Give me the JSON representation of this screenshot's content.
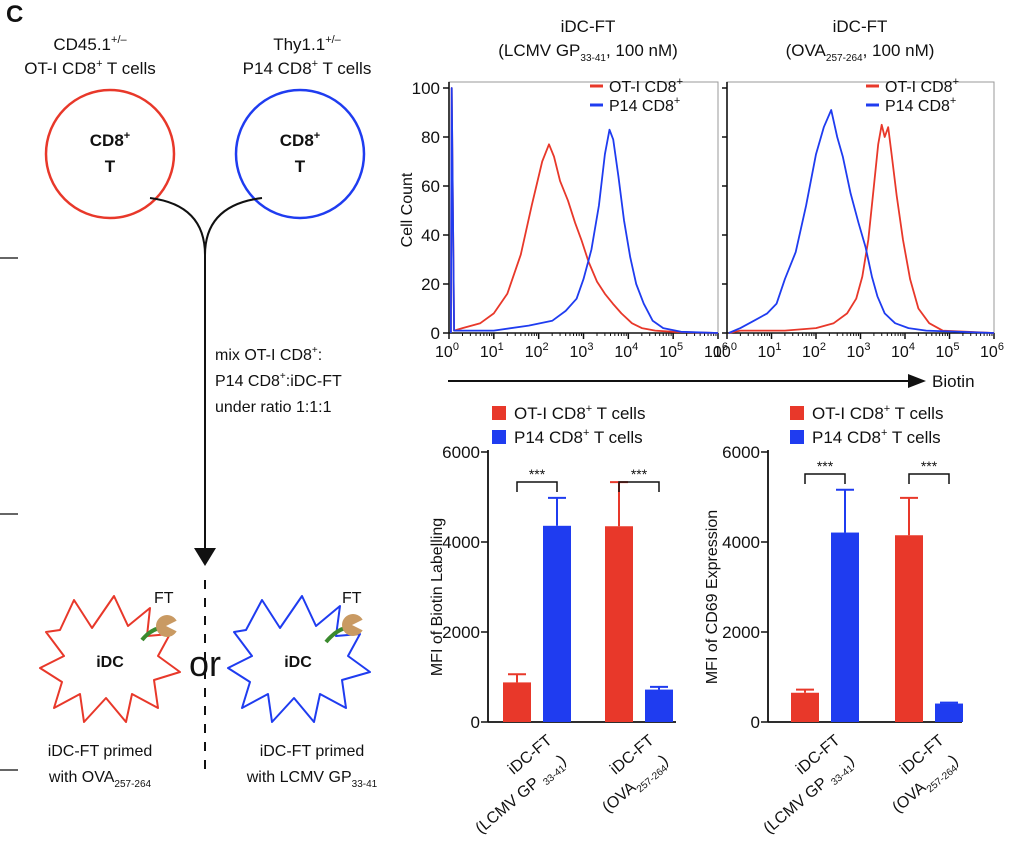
{
  "panel_label": "C",
  "colors": {
    "ot1": "#e8382a",
    "p14": "#1f3cf0",
    "axis": "#111111",
    "ft": "#c99a63",
    "ft_link": "#3b8a2e"
  },
  "schematic": {
    "ot1_header": [
      "CD45.1+/–",
      "OT-I CD8+ T cells"
    ],
    "p14_header": [
      "Thy1.1+/–",
      "P14 CD8+ T cells"
    ],
    "cell_label": [
      "CD8+",
      "T"
    ],
    "mix_text": [
      "mix OT-I CD8+:",
      "P14 CD8+:iDC-FT",
      "under ratio 1:1:1"
    ],
    "idc_label": "iDC",
    "ft_label": "FT",
    "or_label": "or",
    "caption_left": [
      "iDC-FT primed",
      "with OVA257-264"
    ],
    "caption_right": [
      "iDC-FT primed",
      "with LCMV GP33-41"
    ]
  },
  "chart_data": [
    {
      "type": "line",
      "title": "iDC-FT (LCMV GP33-41, 100 nM)",
      "ylabel": "Cell Count",
      "xlabel": "Biotin",
      "x_scale": "log",
      "xlim": [
        1,
        1000000
      ],
      "ylim": [
        0,
        100
      ],
      "y_ticks": [
        "0",
        "20",
        "40",
        "60",
        "80",
        "100"
      ],
      "x_ticks": [
        "10^0",
        "10^1",
        "10^2",
        "10^3",
        "10^4",
        "10^5",
        "10^6"
      ],
      "legend": "top-right",
      "series": [
        {
          "name": "OT-I CD8+",
          "color": "#e8382a",
          "points": [
            [
              1.1,
              0
            ],
            [
              1.15,
              100
            ],
            [
              1.3,
              1
            ],
            [
              2,
              2
            ],
            [
              5,
              4
            ],
            [
              10,
              8
            ],
            [
              20,
              16
            ],
            [
              40,
              32
            ],
            [
              70,
              52
            ],
            [
              120,
              70
            ],
            [
              170,
              77
            ],
            [
              220,
              72
            ],
            [
              300,
              62
            ],
            [
              450,
              54
            ],
            [
              650,
              45
            ],
            [
              900,
              38
            ],
            [
              1300,
              29
            ],
            [
              2000,
              21
            ],
            [
              3000,
              16
            ],
            [
              4500,
              12
            ],
            [
              7000,
              8
            ],
            [
              12000,
              4
            ],
            [
              20000,
              2
            ],
            [
              40000,
              1
            ],
            [
              100000,
              0.5
            ],
            [
              1000000,
              0
            ]
          ]
        },
        {
          "name": "P14 CD8+",
          "color": "#1f3cf0",
          "points": [
            [
              1.1,
              0
            ],
            [
              1.15,
              100
            ],
            [
              1.3,
              1
            ],
            [
              10,
              1
            ],
            [
              60,
              3
            ],
            [
              200,
              5
            ],
            [
              400,
              9
            ],
            [
              700,
              14
            ],
            [
              1000,
              22
            ],
            [
              1500,
              34
            ],
            [
              2200,
              52
            ],
            [
              3000,
              73
            ],
            [
              3800,
              83
            ],
            [
              4600,
              79
            ],
            [
              6000,
              64
            ],
            [
              8000,
              46
            ],
            [
              11000,
              31
            ],
            [
              15000,
              20
            ],
            [
              22000,
              12
            ],
            [
              35000,
              5
            ],
            [
              60000,
              2
            ],
            [
              150000,
              0.5
            ],
            [
              1000000,
              0
            ]
          ]
        }
      ]
    },
    {
      "type": "line",
      "title": "iDC-FT (OVA257-264, 100 nM)",
      "ylabel": "",
      "xlabel": "Biotin",
      "x_scale": "log",
      "xlim": [
        1,
        1000000
      ],
      "ylim": [
        0,
        100
      ],
      "x_ticks": [
        "10^0",
        "10^1",
        "10^2",
        "10^3",
        "10^4",
        "10^5",
        "10^6"
      ],
      "legend": "top-right",
      "series": [
        {
          "name": "OT-I CD8+",
          "color": "#e8382a",
          "points": [
            [
              1.1,
              0
            ],
            [
              2,
              1
            ],
            [
              20,
              1
            ],
            [
              100,
              2
            ],
            [
              250,
              4
            ],
            [
              500,
              8
            ],
            [
              800,
              14
            ],
            [
              1100,
              23
            ],
            [
              1500,
              38
            ],
            [
              2000,
              60
            ],
            [
              2500,
              77
            ],
            [
              3000,
              85
            ],
            [
              3500,
              80
            ],
            [
              4200,
              84
            ],
            [
              5000,
              73
            ],
            [
              6500,
              56
            ],
            [
              9000,
              38
            ],
            [
              13000,
              22
            ],
            [
              20000,
              10
            ],
            [
              35000,
              4
            ],
            [
              70000,
              1
            ],
            [
              1000000,
              0
            ]
          ]
        },
        {
          "name": "P14 CD8+",
          "color": "#1f3cf0",
          "points": [
            [
              1.1,
              0
            ],
            [
              2,
              2
            ],
            [
              4,
              5
            ],
            [
              8,
              8
            ],
            [
              13,
              12
            ],
            [
              20,
              22
            ],
            [
              35,
              33
            ],
            [
              60,
              52
            ],
            [
              100,
              73
            ],
            [
              150,
              84
            ],
            [
              220,
              91
            ],
            [
              300,
              80
            ],
            [
              400,
              72
            ],
            [
              600,
              57
            ],
            [
              900,
              45
            ],
            [
              1300,
              35
            ],
            [
              1800,
              23
            ],
            [
              2400,
              15
            ],
            [
              3500,
              8
            ],
            [
              6000,
              4
            ],
            [
              12000,
              2
            ],
            [
              30000,
              1
            ],
            [
              1000000,
              0
            ]
          ]
        }
      ]
    },
    {
      "type": "bar",
      "ylabel": "MFI of Biotin Labelling",
      "ylim": [
        0,
        6000
      ],
      "y_ticks": [
        "0",
        "2000",
        "4000",
        "6000"
      ],
      "legend": "top",
      "categories": [
        "iDC-FT (LCMV GP33-41)",
        "iDC-FT (OVA257-264)"
      ],
      "series": [
        {
          "name": "OT-I CD8+ T cells",
          "color": "#e8382a",
          "values": [
            880,
            4350
          ],
          "errors": [
            180,
            980
          ]
        },
        {
          "name": "P14 CD8+ T cells",
          "color": "#1f3cf0",
          "values": [
            4360,
            720
          ],
          "errors": [
            620,
            60
          ]
        }
      ],
      "annotations": [
        "***",
        "***"
      ]
    },
    {
      "type": "bar",
      "ylabel": "MFI of CD69 Expression",
      "ylim": [
        0,
        6000
      ],
      "y_ticks": [
        "0",
        "2000",
        "4000",
        "6000"
      ],
      "legend": "top",
      "categories": [
        "iDC-FT (LCMV GP33-41)",
        "iDC-FT (OVA257-264)"
      ],
      "series": [
        {
          "name": "OT-I CD8+ T cells",
          "color": "#e8382a",
          "values": [
            650,
            4150
          ],
          "errors": [
            70,
            830
          ]
        },
        {
          "name": "P14 CD8+ T cells",
          "color": "#1f3cf0",
          "values": [
            4210,
            410
          ],
          "errors": [
            950,
            20
          ]
        }
      ],
      "annotations": [
        "***",
        "***"
      ]
    }
  ]
}
